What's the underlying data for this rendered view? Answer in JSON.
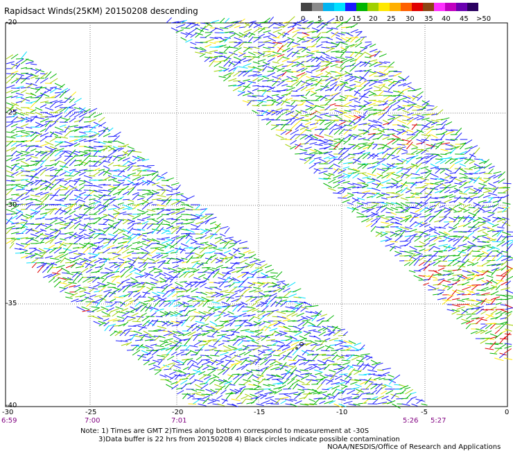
{
  "title": "Rapidsact Winds(25KM) 20150208 descending",
  "legend": {
    "labels": [
      "0",
      "5",
      "10",
      "15",
      "20",
      "25",
      "30",
      "35",
      "40",
      "45",
      ">50 knots"
    ],
    "colors": [
      "#444444",
      "#8a8a8a",
      "#00b4f0",
      "#00e0ff",
      "#1a1aff",
      "#00b400",
      "#a0d000",
      "#ffe800",
      "#ffb000",
      "#ff6000",
      "#e00000",
      "#8b4513",
      "#ff30ff",
      "#c000c0",
      "#6a00b0",
      "#2a0060"
    ]
  },
  "axes": {
    "lat_labels": [
      "-20",
      "-25",
      "-30",
      "-35",
      "-40"
    ],
    "lon_labels": [
      "-30",
      "-25",
      "-20",
      "-15",
      "-10",
      "-5",
      "0"
    ]
  },
  "time_labels": [
    "6:59",
    "7:00",
    "7:01",
    "5:26",
    "5:27"
  ],
  "notes": {
    "line1": "Note: 1) Times are GMT 2)Times along bottom correspond to measurement at -30S",
    "line2": "3)Data buffer is 22 hrs from 20150208 4) Black circles indicate possible contamination",
    "credit": "NOAA/NESDIS/Office of Research and Applications"
  }
}
